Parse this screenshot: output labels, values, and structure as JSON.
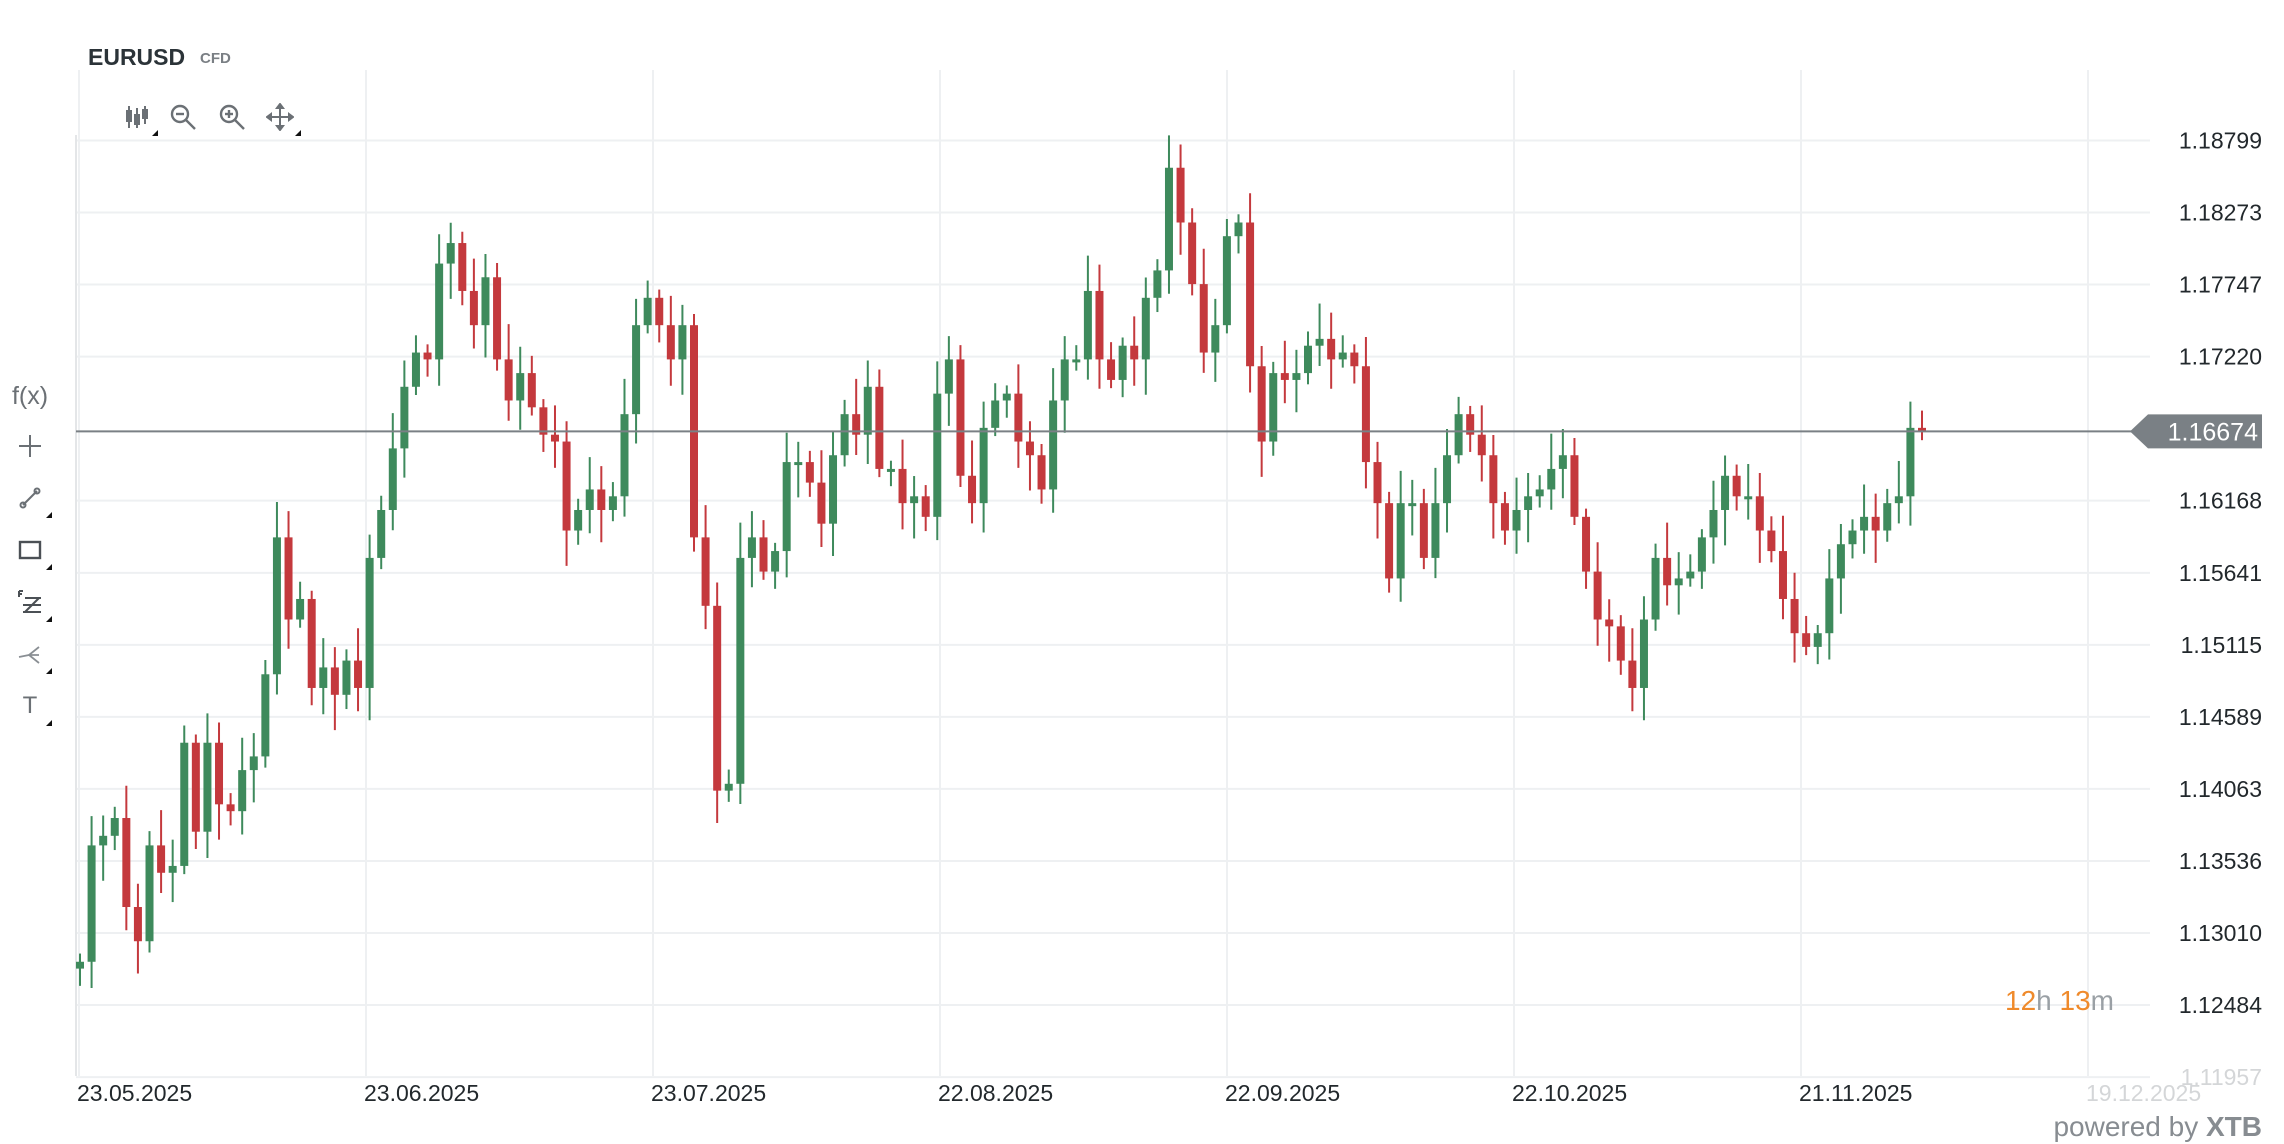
{
  "header": {
    "symbol": "EURUSD",
    "type": "CFD"
  },
  "toolbar_top": [
    "candlestick-type-icon",
    "zoom-out-icon",
    "zoom-in-icon",
    "pan-move-icon"
  ],
  "toolbar_left": {
    "fx_label": "f(x)",
    "items": [
      "crosshair-icon",
      "trendline-icon",
      "rectangle-icon",
      "fibonacci-icon",
      "pitchfork-icon",
      "text-tool-icon"
    ],
    "text_label": "T"
  },
  "countdown": {
    "hours": "12",
    "h": "h",
    "minutes": "13",
    "m": "m"
  },
  "branding": {
    "prefix": "powered by",
    "brand": "XTB"
  },
  "colors": {
    "up": "#3e8a5c",
    "down": "#c4393d",
    "price_line": "#7a8085"
  },
  "chart_data": {
    "type": "candlestick",
    "title": "EURUSD",
    "current_price": 1.16674,
    "current_price_label": "1.16674",
    "y_ticks": [
      "1.18799",
      "1.18273",
      "1.17747",
      "1.17220",
      "1.16168",
      "1.15641",
      "1.15115",
      "1.14589",
      "1.14063",
      "1.13536",
      "1.13010",
      "1.12484",
      "1.11957"
    ],
    "ylim": [
      1.117,
      1.194
    ],
    "x_ticks": [
      "23.05.2025",
      "23.06.2025",
      "23.07.2025",
      "22.08.2025",
      "22.09.2025",
      "22.10.2025",
      "21.11.2025",
      "19.12.2025"
    ],
    "first_open": 1.1275,
    "closes": [
      1.128,
      1.1365,
      1.1372,
      1.1385,
      1.132,
      1.1295,
      1.1365,
      1.1345,
      1.135,
      1.144,
      1.1375,
      1.144,
      1.1395,
      1.139,
      1.142,
      1.143,
      1.149,
      1.159,
      1.153,
      1.1545,
      1.148,
      1.1495,
      1.1475,
      1.15,
      1.148,
      1.1575,
      1.161,
      1.1655,
      1.17,
      1.1725,
      1.172,
      1.179,
      1.1805,
      1.177,
      1.1745,
      1.178,
      1.172,
      1.169,
      1.171,
      1.1685,
      1.1665,
      1.166,
      1.1595,
      1.161,
      1.1625,
      1.161,
      1.162,
      1.168,
      1.1745,
      1.1765,
      1.1745,
      1.172,
      1.1745,
      1.159,
      1.154,
      1.1405,
      1.141,
      1.1575,
      1.159,
      1.1565,
      1.158,
      1.1645,
      1.1645,
      1.163,
      1.16,
      1.165,
      1.168,
      1.1665,
      1.17,
      1.164,
      1.164,
      1.1615,
      1.162,
      1.1605,
      1.1695,
      1.172,
      1.1635,
      1.1615,
      1.167,
      1.169,
      1.1695,
      1.166,
      1.165,
      1.1625,
      1.169,
      1.172,
      1.172,
      1.177,
      1.172,
      1.1705,
      1.173,
      1.172,
      1.1765,
      1.1785,
      1.186,
      1.182,
      1.1775,
      1.1725,
      1.1745,
      1.181,
      1.182,
      1.1715,
      1.166,
      1.171,
      1.1705,
      1.171,
      1.173,
      1.1735,
      1.172,
      1.1725,
      1.1715,
      1.1645,
      1.1615,
      1.156,
      1.1615,
      1.1615,
      1.1575,
      1.1615,
      1.165,
      1.168,
      1.1665,
      1.165,
      1.1615,
      1.1595,
      1.161,
      1.162,
      1.1625,
      1.164,
      1.165,
      1.1605,
      1.1565,
      1.153,
      1.1525,
      1.15,
      1.148,
      1.153,
      1.1575,
      1.1555,
      1.156,
      1.1565,
      1.159,
      1.161,
      1.1635,
      1.162,
      1.162,
      1.1595,
      1.158,
      1.1545,
      1.152,
      1.151,
      1.152,
      1.156,
      1.1585,
      1.1595,
      1.1605,
      1.1595,
      1.1615,
      1.162,
      1.167,
      1.1667
    ]
  }
}
